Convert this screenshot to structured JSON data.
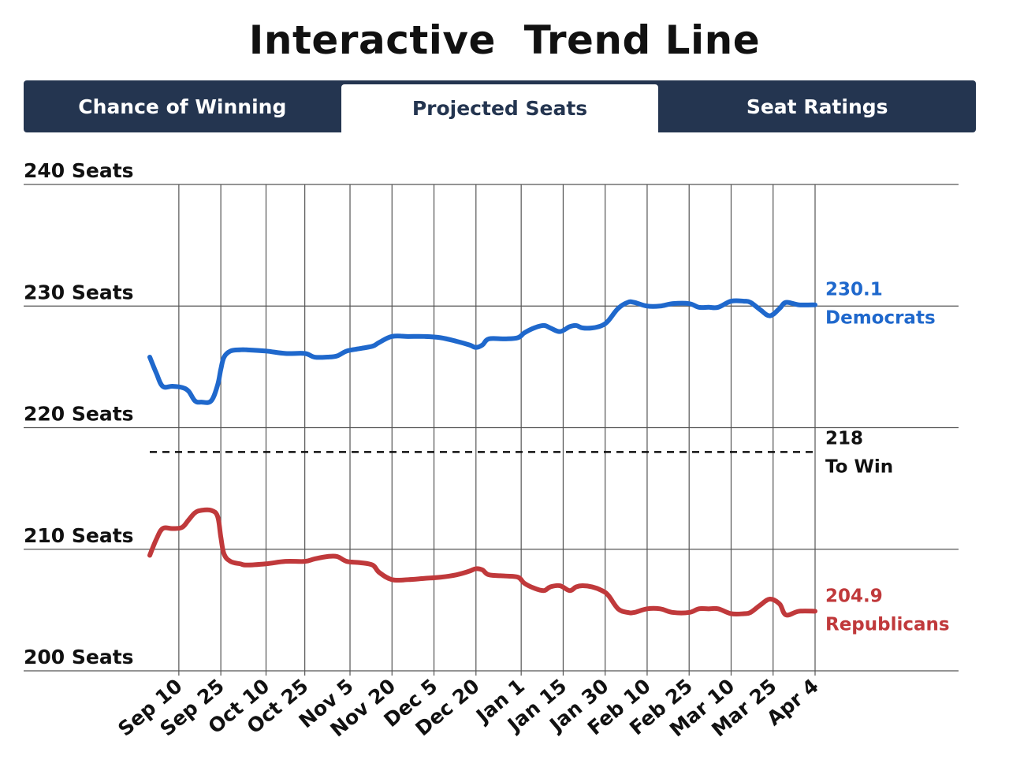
{
  "title": "Interactive  Trend Line",
  "tabs": [
    {
      "label": "Chance of Winning",
      "active": false
    },
    {
      "label": "Projected Seats",
      "active": true
    },
    {
      "label": "Seat Ratings",
      "active": false
    }
  ],
  "colors": {
    "tab_bg": "#243550",
    "democrats": "#1f68cc",
    "republicans": "#c0393b",
    "grid": "#555555"
  },
  "chart_data": {
    "type": "line",
    "title": "Projected Seats",
    "xlabel": "",
    "ylabel": "Seats",
    "ylim": [
      200,
      240
    ],
    "xlim": [
      0,
      206
    ],
    "y_ticks": [
      {
        "value": 240,
        "label": "240 Seats"
      },
      {
        "value": 230,
        "label": "230 Seats"
      },
      {
        "value": 220,
        "label": "220 Seats"
      },
      {
        "value": 210,
        "label": "210 Seats"
      },
      {
        "value": 200,
        "label": "200 Seats"
      }
    ],
    "x_ticks": [
      {
        "day": 9,
        "label": "Sep 10"
      },
      {
        "day": 22,
        "label": "Sep 25"
      },
      {
        "day": 36,
        "label": "Oct 10"
      },
      {
        "day": 48,
        "label": "Oct 25"
      },
      {
        "day": 62,
        "label": "Nov 5"
      },
      {
        "day": 75,
        "label": "Nov 20"
      },
      {
        "day": 88,
        "label": "Dec 5"
      },
      {
        "day": 101,
        "label": "Dec 20"
      },
      {
        "day": 115,
        "label": "Jan 1"
      },
      {
        "day": 128,
        "label": "Jan 15"
      },
      {
        "day": 141,
        "label": "Jan 30"
      },
      {
        "day": 154,
        "label": "Feb 10"
      },
      {
        "day": 167,
        "label": "Feb 25"
      },
      {
        "day": 180,
        "label": "Mar 10"
      },
      {
        "day": 193,
        "label": "Mar 25"
      },
      {
        "day": 206,
        "label": "Apr 4"
      }
    ],
    "threshold": {
      "value": 218,
      "label_value": "218",
      "label_text": "To Win"
    },
    "series": [
      {
        "name": "Democrats",
        "end_value": "230.1",
        "color": "#1f68cc",
        "x": [
          0,
          2,
          4,
          7,
          10,
          12,
          14,
          16,
          19,
          21,
          22,
          23,
          25,
          28,
          30,
          36,
          42,
          48,
          51,
          55,
          58,
          61,
          65,
          69,
          71,
          75,
          80,
          85,
          90,
          95,
          99,
          101,
          103,
          105,
          110,
          114,
          116,
          119,
          122,
          124,
          127,
          130,
          132,
          134,
          137,
          140,
          142,
          145,
          148,
          150,
          154,
          158,
          162,
          167,
          170,
          173,
          176,
          180,
          184,
          186,
          189,
          192,
          195,
          197,
          201,
          206
        ],
        "values": [
          225.8,
          224.5,
          223.4,
          223.4,
          223.3,
          223.0,
          222.2,
          222.1,
          222.2,
          223.5,
          224.8,
          225.8,
          226.3,
          226.4,
          226.4,
          226.3,
          226.1,
          226.1,
          225.8,
          225.8,
          225.9,
          226.3,
          226.5,
          226.7,
          227.0,
          227.5,
          227.5,
          227.5,
          227.4,
          227.1,
          226.8,
          226.6,
          226.8,
          227.3,
          227.3,
          227.4,
          227.8,
          228.2,
          228.4,
          228.2,
          227.9,
          228.3,
          228.4,
          228.2,
          228.2,
          228.4,
          228.8,
          229.8,
          230.3,
          230.3,
          230.0,
          230.0,
          230.2,
          230.2,
          229.9,
          229.9,
          229.9,
          230.4,
          230.4,
          230.3,
          229.7,
          229.2,
          229.8,
          230.3,
          230.1,
          230.1
        ]
      },
      {
        "name": "Republicans",
        "end_value": "204.9",
        "color": "#c0393b",
        "x": [
          0,
          2,
          4,
          7,
          10,
          12,
          14,
          16,
          19,
          21,
          22,
          23,
          25,
          28,
          30,
          36,
          42,
          48,
          51,
          55,
          58,
          61,
          65,
          69,
          71,
          75,
          80,
          85,
          90,
          95,
          99,
          101,
          103,
          105,
          110,
          114,
          116,
          119,
          122,
          124,
          127,
          130,
          132,
          134,
          137,
          140,
          142,
          145,
          148,
          150,
          154,
          158,
          162,
          167,
          170,
          173,
          176,
          180,
          184,
          186,
          189,
          192,
          195,
          197,
          201,
          206
        ],
        "values": [
          209.5,
          210.8,
          211.7,
          211.7,
          211.8,
          212.4,
          213.0,
          213.2,
          213.2,
          212.7,
          211.0,
          209.6,
          209.0,
          208.8,
          208.7,
          208.8,
          209.0,
          209.0,
          209.2,
          209.4,
          209.4,
          209.0,
          208.9,
          208.7,
          208.1,
          207.5,
          207.5,
          207.6,
          207.7,
          207.9,
          208.2,
          208.4,
          208.3,
          207.9,
          207.8,
          207.7,
          207.2,
          206.8,
          206.6,
          206.9,
          207.0,
          206.6,
          206.9,
          207.0,
          206.9,
          206.6,
          206.2,
          205.1,
          204.8,
          204.8,
          205.1,
          205.1,
          204.8,
          204.8,
          205.1,
          205.1,
          205.1,
          204.7,
          204.7,
          204.8,
          205.4,
          205.9,
          205.5,
          204.6,
          204.9,
          204.9
        ]
      }
    ]
  }
}
